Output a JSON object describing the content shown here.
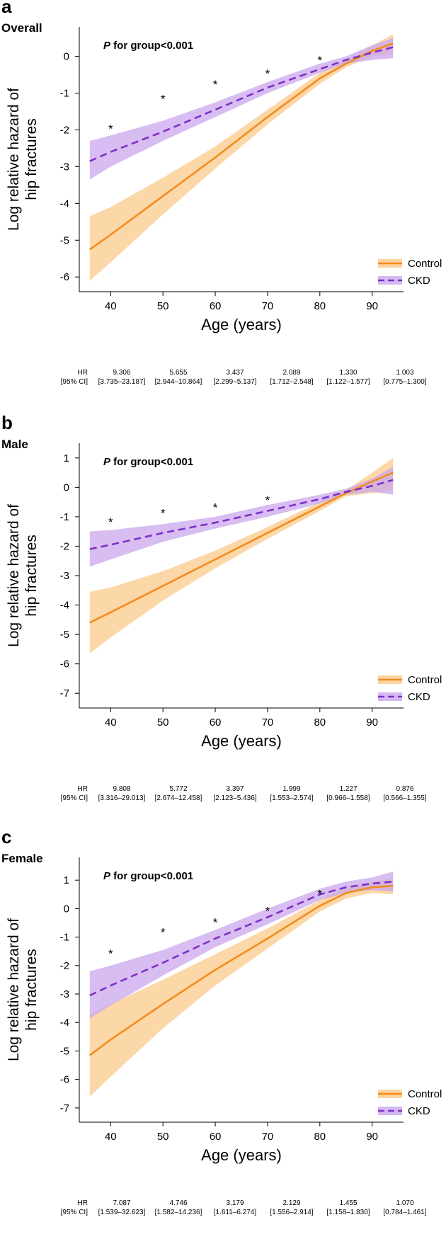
{
  "hr_row_labels": [
    "HR",
    "[95% CI]"
  ],
  "legend": {
    "control": "Control",
    "ckd": "CKD"
  },
  "colors": {
    "control": "#f28c1e",
    "control_band": "#fbc98a",
    "ckd": "#7f30c8",
    "ckd_band": "#c9a7ec"
  },
  "chart_data": [
    {
      "type": "line",
      "panel_letter": "a",
      "title": "Overall",
      "annotation": "P for group<0.001",
      "annotation_p": "P",
      "annotation_rest": " for group<0.001",
      "xlabel": "Age (years)",
      "ylabel_line1": "Log relative hazard of",
      "ylabel_line2": "hip fractures",
      "xlim": [
        34,
        96
      ],
      "ylim": [
        -6.4,
        0.8
      ],
      "xticks": [
        40,
        50,
        60,
        70,
        80,
        90
      ],
      "yticks": [
        -6,
        -5,
        -4,
        -3,
        -2,
        -1,
        0
      ],
      "star_x": [
        40,
        50,
        60,
        70,
        80
      ],
      "star_y": [
        -1.9,
        -1.1,
        -0.7,
        -0.4,
        -0.05
      ],
      "series": [
        {
          "name": "Control",
          "x": [
            36,
            40,
            50,
            60,
            70,
            80,
            85,
            90,
            94
          ],
          "y": [
            -5.25,
            -4.85,
            -3.8,
            -2.75,
            -1.65,
            -0.6,
            -0.2,
            0.15,
            0.35
          ],
          "lower": [
            -6.1,
            -5.6,
            -4.3,
            -3.05,
            -1.85,
            -0.75,
            -0.3,
            0.0,
            0.05
          ],
          "upper": [
            -4.35,
            -4.1,
            -3.3,
            -2.45,
            -1.45,
            -0.45,
            -0.1,
            0.3,
            0.6
          ]
        },
        {
          "name": "CKD",
          "x": [
            36,
            40,
            50,
            60,
            70,
            80,
            85,
            90,
            94
          ],
          "y": [
            -2.85,
            -2.6,
            -2.05,
            -1.45,
            -0.85,
            -0.35,
            -0.1,
            0.1,
            0.25
          ],
          "lower": [
            -3.35,
            -3.0,
            -2.3,
            -1.65,
            -1.0,
            -0.45,
            -0.2,
            -0.1,
            -0.05
          ],
          "upper": [
            -2.3,
            -2.15,
            -1.75,
            -1.25,
            -0.7,
            -0.2,
            0.0,
            0.3,
            0.5
          ]
        }
      ],
      "hr": [
        "9.306",
        "5.655",
        "3.437",
        "2.089",
        "1.330",
        "1.003"
      ],
      "ci": [
        "[3.735–23.187]",
        "[2.944–10.864]",
        "[2.299–5.137]",
        "[1.712–2.548]",
        "[1.122–1.577]",
        "[0.775–1.300]"
      ]
    },
    {
      "type": "line",
      "panel_letter": "b",
      "title": "Male",
      "annotation": "P for group<0.001",
      "annotation_p": "P",
      "annotation_rest": " for group<0.001",
      "xlabel": "Age (years)",
      "ylabel_line1": "Log relative hazard of",
      "ylabel_line2": "hip fractures",
      "xlim": [
        34,
        96
      ],
      "ylim": [
        -7.5,
        1.5
      ],
      "xticks": [
        40,
        50,
        60,
        70,
        80,
        90
      ],
      "yticks": [
        -7,
        -6,
        -5,
        -4,
        -3,
        -2,
        -1,
        0,
        1
      ],
      "star_x": [
        40,
        50,
        60,
        70
      ],
      "star_y": [
        -1.1,
        -0.8,
        -0.6,
        -0.35
      ],
      "series": [
        {
          "name": "Control",
          "x": [
            36,
            40,
            50,
            60,
            70,
            80,
            85,
            90,
            94
          ],
          "y": [
            -4.6,
            -4.25,
            -3.35,
            -2.45,
            -1.55,
            -0.65,
            -0.2,
            0.2,
            0.5
          ],
          "lower": [
            -5.65,
            -5.1,
            -3.85,
            -2.75,
            -1.75,
            -0.8,
            -0.3,
            -0.2,
            -0.1
          ],
          "upper": [
            -3.55,
            -3.4,
            -2.85,
            -2.15,
            -1.35,
            -0.5,
            -0.1,
            0.5,
            1.0
          ]
        },
        {
          "name": "CKD",
          "x": [
            36,
            40,
            50,
            60,
            70,
            80,
            85,
            90,
            94
          ],
          "y": [
            -2.1,
            -1.95,
            -1.55,
            -1.2,
            -0.8,
            -0.4,
            -0.15,
            0.05,
            0.25
          ],
          "lower": [
            -2.7,
            -2.45,
            -1.85,
            -1.4,
            -1.0,
            -0.55,
            -0.25,
            -0.15,
            -0.25
          ],
          "upper": [
            -1.5,
            -1.45,
            -1.25,
            -1.0,
            -0.6,
            -0.25,
            -0.05,
            0.3,
            0.7
          ]
        }
      ],
      "hr": [
        "9.808",
        "5.772",
        "3.397",
        "1.999",
        "1.227",
        "0.876"
      ],
      "ci": [
        "[3.316–29.013]",
        "[2.674–12.458]",
        "[2.123–5.436]",
        "[1.553–2.574]",
        "[0.966–1.558]",
        "[0.566–1.355]"
      ]
    },
    {
      "type": "line",
      "panel_letter": "c",
      "title": "Female",
      "annotation": "P for group<0.001",
      "annotation_p": "P",
      "annotation_rest": " for group<0.001",
      "xlabel": "Age (years)",
      "ylabel_line1": "Log relative hazard of",
      "ylabel_line2": "hip fractures",
      "xlim": [
        34,
        96
      ],
      "ylim": [
        -7.5,
        1.8
      ],
      "xticks": [
        40,
        50,
        60,
        70,
        80,
        90
      ],
      "yticks": [
        -7,
        -6,
        -5,
        -4,
        -3,
        -2,
        -1,
        0,
        1
      ],
      "star_x": [
        40,
        50,
        60,
        70,
        80
      ],
      "star_y": [
        -1.5,
        -0.75,
        -0.4,
        0.0,
        0.6
      ],
      "series": [
        {
          "name": "Control",
          "x": [
            36,
            40,
            50,
            60,
            70,
            80,
            85,
            90,
            94
          ],
          "y": [
            -5.15,
            -4.6,
            -3.35,
            -2.15,
            -1.05,
            0.1,
            0.55,
            0.75,
            0.8
          ],
          "lower": [
            -6.6,
            -5.9,
            -4.2,
            -2.7,
            -1.4,
            -0.1,
            0.35,
            0.55,
            0.5
          ],
          "upper": [
            -3.75,
            -3.35,
            -2.5,
            -1.6,
            -0.7,
            0.3,
            0.75,
            0.95,
            1.05
          ]
        },
        {
          "name": "CKD",
          "x": [
            36,
            40,
            50,
            60,
            70,
            80,
            85,
            90,
            94
          ],
          "y": [
            -3.05,
            -2.7,
            -1.9,
            -1.05,
            -0.3,
            0.5,
            0.75,
            0.88,
            0.95
          ],
          "lower": [
            -3.85,
            -3.4,
            -2.35,
            -1.35,
            -0.55,
            0.3,
            0.55,
            0.65,
            0.6
          ],
          "upper": [
            -2.2,
            -2.0,
            -1.45,
            -0.75,
            0.0,
            0.7,
            0.95,
            1.1,
            1.3
          ]
        }
      ],
      "hr": [
        "7.087",
        "4.746",
        "3.179",
        "2.129",
        "1.455",
        "1.070"
      ],
      "ci": [
        "[1.539–32.623]",
        "[1.582–14.236]",
        "[1.611–6.274]",
        "[1.556–2.914]",
        "[1.158–1.830]",
        "[0.784–1.461]"
      ]
    }
  ]
}
